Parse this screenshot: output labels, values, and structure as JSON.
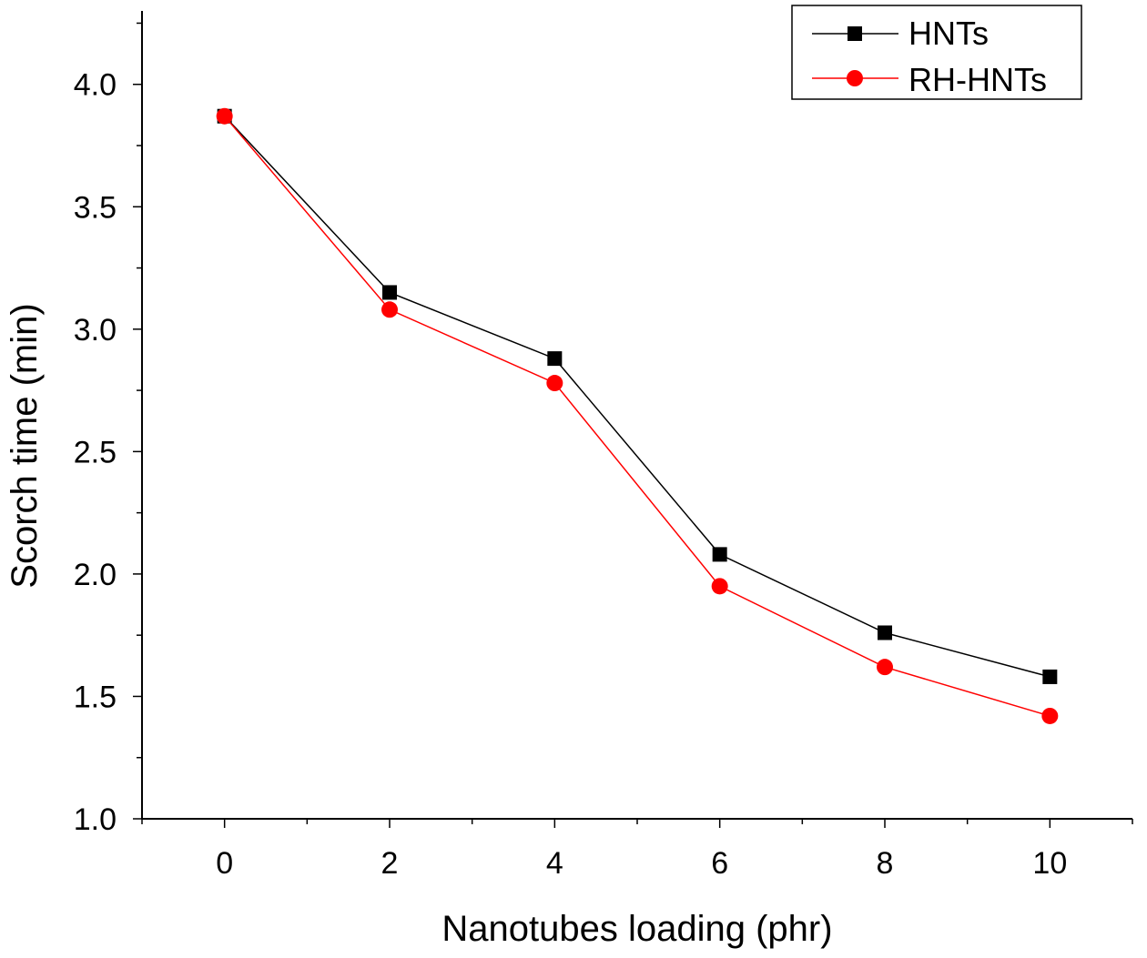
{
  "chart_data": {
    "type": "line",
    "xlabel": "Nanotubes loading (phr)",
    "ylabel": "Scorch time (min)",
    "xlim": [
      -1,
      11
    ],
    "ylim": [
      1.0,
      4.3
    ],
    "x_ticks": [
      "0",
      "2",
      "4",
      "6",
      "8",
      "10"
    ],
    "y_ticks": [
      "1.0",
      "1.5",
      "2.0",
      "2.5",
      "3.0",
      "3.5",
      "4.0"
    ],
    "x": [
      0,
      2,
      4,
      6,
      8,
      10
    ],
    "series": [
      {
        "name": "HNTs",
        "values": [
          3.87,
          3.15,
          2.88,
          2.08,
          1.76,
          1.58
        ],
        "color": "#000000",
        "marker": "square"
      },
      {
        "name": "RH-HNTs",
        "values": [
          3.87,
          3.08,
          2.78,
          1.95,
          1.62,
          1.42
        ],
        "color": "#ff0000",
        "marker": "circle"
      }
    ],
    "legend_position": "top-right",
    "grid": false
  }
}
